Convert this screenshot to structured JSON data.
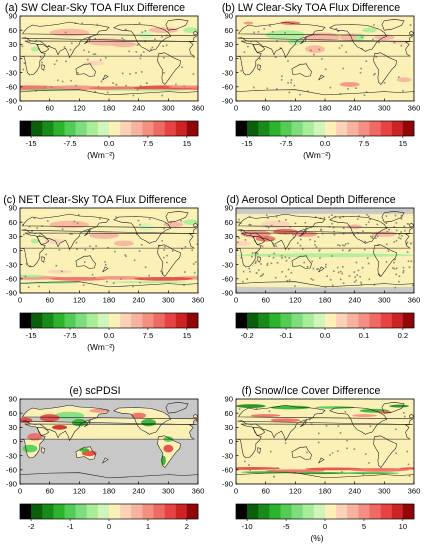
{
  "figure": {
    "panels": [
      {
        "title": "(a) SW Clear-Sky TOA Flux Difference",
        "map_style": "flux_sw",
        "cbar": {
          "labels": [
            "-15",
            "-7.5",
            "0.0",
            "7.5",
            "15"
          ],
          "unit": "(Wm⁻²)"
        }
      },
      {
        "title": "(b) LW Clear-Sky TOA Flux Difference",
        "map_style": "flux_lw",
        "cbar": {
          "labels": [
            "-15",
            "-7.5",
            "0.0",
            "7.5",
            "15"
          ],
          "unit": "(Wm⁻²)"
        }
      },
      {
        "title": "(c) NET Clear-Sky TOA Flux Difference",
        "map_style": "flux_net",
        "cbar": {
          "labels": [
            "-15",
            "-7.5",
            "0.0",
            "7.5",
            "15"
          ],
          "unit": "(Wm⁻²)"
        }
      },
      {
        "title": "(d) Aerosol Optical Depth Difference",
        "map_style": "aod",
        "cbar": {
          "labels": [
            "-0.2",
            "-0.1",
            "0.0",
            "0.1",
            "0.2"
          ],
          "unit": ""
        }
      },
      {
        "title": "(e) scPDSI",
        "map_style": "pdsi",
        "cbar": {
          "labels": [
            "-2",
            "-1",
            "0",
            "1",
            "2"
          ],
          "unit": ""
        }
      },
      {
        "title": "(f) Snow/Ice Cover Difference",
        "map_style": "snow",
        "cbar": {
          "labels": [
            "-10",
            "-5",
            "0",
            "5",
            "10"
          ],
          "unit": "(%)"
        }
      }
    ],
    "colors": {
      "neutral": "#fbf0b6",
      "missing": "#c8c8c8",
      "coast": "#1a1a1a",
      "colorbar": [
        "#000000",
        "#0b5e0b",
        "#178a17",
        "#2db22d",
        "#52cc52",
        "#7ede7e",
        "#a8ee9a",
        "#d0f5b8",
        "#fbf0b6",
        "#fbd2b8",
        "#f7b2a0",
        "#f49082",
        "#ee6a62",
        "#e64444",
        "#cc2424",
        "#900808"
      ]
    }
  },
  "chart_data": [
    {
      "type": "heatmap",
      "title": "(a) SW Clear-Sky TOA Flux Difference",
      "x_ticks": [
        "0",
        "60",
        "120",
        "180",
        "240",
        "300",
        "360"
      ],
      "xlim": [
        0,
        360
      ],
      "y_ticks": [
        "90",
        "60",
        "30",
        "0",
        "-30",
        "-60",
        "-90"
      ],
      "ylim": [
        -90,
        90
      ],
      "colorbar_range": [
        -15,
        15
      ],
      "colorbar_ticks": [
        -15,
        -7.5,
        0.0,
        7.5,
        15
      ],
      "colorbar_unit": "(Wm⁻²)"
    },
    {
      "type": "heatmap",
      "title": "(b) LW Clear-Sky TOA Flux Difference",
      "x_ticks": [
        "0",
        "60",
        "120",
        "180",
        "240",
        "300",
        "360"
      ],
      "xlim": [
        0,
        360
      ],
      "y_ticks": [
        "90",
        "60",
        "30",
        "0",
        "-30",
        "-60",
        "-90"
      ],
      "ylim": [
        -90,
        90
      ],
      "colorbar_range": [
        -15,
        15
      ],
      "colorbar_ticks": [
        -15,
        -7.5,
        0.0,
        7.5,
        15
      ],
      "colorbar_unit": "(Wm⁻²)"
    },
    {
      "type": "heatmap",
      "title": "(c) NET Clear-Sky TOA Flux Difference",
      "x_ticks": [
        "0",
        "60",
        "120",
        "180",
        "240",
        "300",
        "360"
      ],
      "xlim": [
        0,
        360
      ],
      "y_ticks": [
        "90",
        "60",
        "30",
        "0",
        "-30",
        "-60",
        "-90"
      ],
      "ylim": [
        -90,
        90
      ],
      "colorbar_range": [
        -15,
        15
      ],
      "colorbar_ticks": [
        -15,
        -7.5,
        0.0,
        7.5,
        15
      ],
      "colorbar_unit": "(Wm⁻²)"
    },
    {
      "type": "heatmap",
      "title": "(d) Aerosol Optical Depth Difference",
      "x_ticks": [
        "0",
        "60",
        "120",
        "180",
        "240",
        "300",
        "360"
      ],
      "xlim": [
        0,
        360
      ],
      "y_ticks": [
        "90",
        "60",
        "30",
        "0",
        "-30",
        "-60",
        "-90"
      ],
      "ylim": [
        -90,
        90
      ],
      "colorbar_range": [
        -0.2,
        0.2
      ],
      "colorbar_ticks": [
        -0.2,
        -0.1,
        0.0,
        0.1,
        0.2
      ],
      "colorbar_unit": ""
    },
    {
      "type": "heatmap",
      "title": "(e) scPDSI",
      "x_ticks": [
        "0",
        "60",
        "120",
        "180",
        "240",
        "300",
        "360"
      ],
      "xlim": [
        0,
        360
      ],
      "y_ticks": [
        "90",
        "60",
        "30",
        "0",
        "-30",
        "-60",
        "-90"
      ],
      "ylim": [
        -90,
        90
      ],
      "colorbar_range": [
        -2,
        2
      ],
      "colorbar_ticks": [
        -2,
        -1,
        0,
        1,
        2
      ],
      "colorbar_unit": ""
    },
    {
      "type": "heatmap",
      "title": "(f) Snow/Ice Cover Difference",
      "x_ticks": [
        "0",
        "60",
        "120",
        "180",
        "240",
        "300",
        "360"
      ],
      "xlim": [
        0,
        360
      ],
      "y_ticks": [
        "90",
        "60",
        "30",
        "0",
        "-30",
        "-60",
        "-90"
      ],
      "ylim": [
        -90,
        90
      ],
      "colorbar_range": [
        -10,
        10
      ],
      "colorbar_ticks": [
        -10,
        -5,
        0,
        5,
        10
      ],
      "colorbar_unit": "(%)"
    }
  ]
}
